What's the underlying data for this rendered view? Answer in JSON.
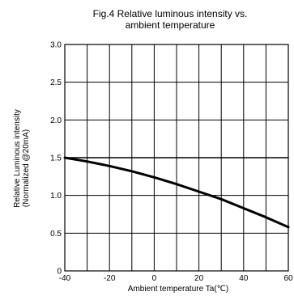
{
  "chart_data": {
    "type": "line",
    "title_line1": "Fig.4 Relative luminous intensity vs.",
    "title_line2": "ambient temperature",
    "ylabel_line1": "Relative Luminous intensity",
    "ylabel_line2": "(Normalized @20mA)",
    "xlabel": "Ambient temperature Ta(℃)",
    "xlim": [
      -40,
      60
    ],
    "ylim": [
      0,
      3.0
    ],
    "x_ticks": [
      -40,
      -20,
      0,
      20,
      40,
      60
    ],
    "x_tick_labels": [
      "-40",
      "-20",
      "0",
      "20",
      "40",
      "60"
    ],
    "y_ticks": [
      0,
      0.5,
      1.0,
      1.5,
      2.0,
      2.5,
      3.0
    ],
    "y_tick_labels": [
      "0",
      "0.5",
      "1.0",
      "1.5",
      "2.0",
      "2.5",
      "3.0"
    ],
    "x_minor_grid": [
      -40,
      -30,
      -20,
      -10,
      0,
      10,
      20,
      30,
      40,
      50,
      60
    ],
    "reference_line_y": 1.5,
    "grid": true,
    "series": [
      {
        "x": [
          -40,
          -30,
          -20,
          -10,
          0,
          10,
          20,
          30,
          40,
          50,
          60
        ],
        "y": [
          1.5,
          1.45,
          1.39,
          1.32,
          1.24,
          1.15,
          1.05,
          0.95,
          0.83,
          0.71,
          0.58
        ],
        "color": "#000000"
      }
    ]
  }
}
